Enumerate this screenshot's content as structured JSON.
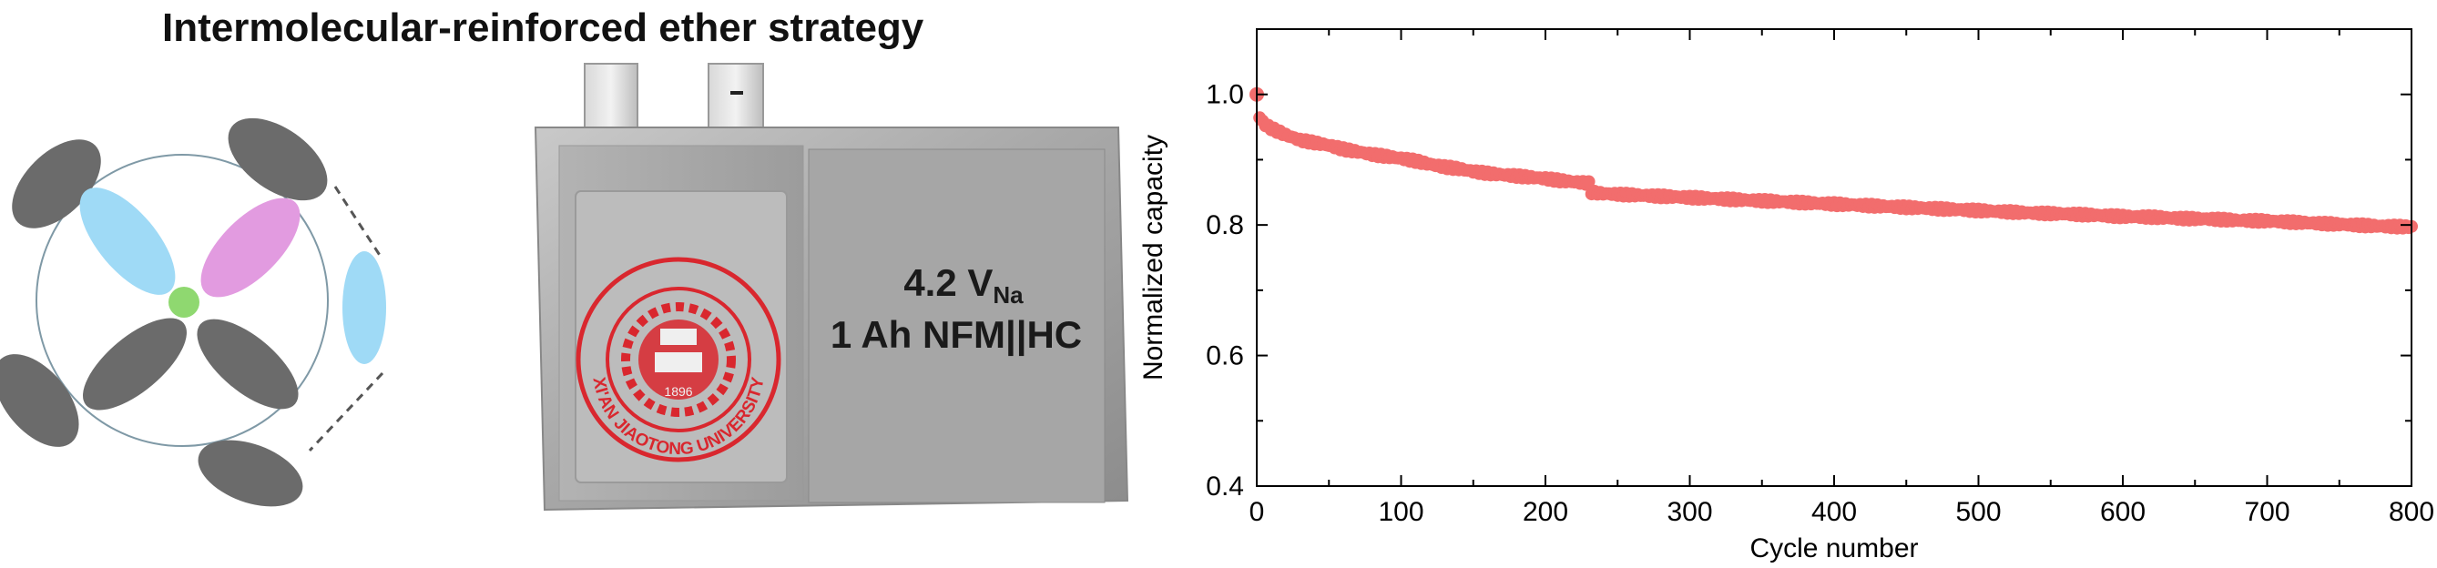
{
  "title": "Intermolecular-reinforced ether strategy",
  "cell": {
    "voltage_main": "4.2 V",
    "voltage_sub": "Na",
    "description": "1 Ah NFM||HC",
    "seal_text": "XI'AN JIAOTONG UNIVERSITY",
    "seal_year": "1896"
  },
  "colors": {
    "solvent_gray": "#6b6b6b",
    "anion_blue": "#9fdaf6",
    "molecule_pink": "#e29be0",
    "cation_green": "#8fd870",
    "series_red": "#f26d6d",
    "seal_red": "#d9272e"
  },
  "chart_data": {
    "type": "scatter",
    "xlabel": "Cycle number",
    "ylabel": "Normalized capacity",
    "xlim": [
      0,
      800
    ],
    "ylim": [
      0.4,
      1.1
    ],
    "xticks": [
      "0",
      "100",
      "200",
      "300",
      "400",
      "500",
      "600",
      "700",
      "800"
    ],
    "yticks": [
      "0.4",
      "0.6",
      "0.8",
      "1.0"
    ],
    "series": [
      {
        "x": [
          0,
          2,
          5,
          10,
          20,
          30,
          40,
          50,
          60,
          70,
          80,
          90,
          100,
          110,
          120,
          130,
          140,
          150,
          160,
          170,
          180,
          190,
          200,
          210,
          220,
          230,
          232,
          240,
          250,
          260,
          280,
          300,
          320,
          340,
          360,
          380,
          400,
          420,
          440,
          460,
          480,
          500,
          520,
          540,
          560,
          580,
          600,
          620,
          640,
          660,
          680,
          700,
          720,
          740,
          760,
          780,
          800
        ],
        "y": [
          1.0,
          0.965,
          0.955,
          0.948,
          0.938,
          0.93,
          0.926,
          0.922,
          0.916,
          0.912,
          0.908,
          0.905,
          0.902,
          0.898,
          0.893,
          0.889,
          0.886,
          0.882,
          0.879,
          0.877,
          0.875,
          0.873,
          0.871,
          0.868,
          0.866,
          0.864,
          0.85,
          0.848,
          0.847,
          0.846,
          0.844,
          0.842,
          0.84,
          0.838,
          0.836,
          0.834,
          0.832,
          0.83,
          0.828,
          0.826,
          0.824,
          0.822,
          0.82,
          0.818,
          0.817,
          0.815,
          0.813,
          0.812,
          0.81,
          0.809,
          0.807,
          0.806,
          0.804,
          0.802,
          0.8,
          0.798,
          0.797
        ]
      }
    ]
  }
}
